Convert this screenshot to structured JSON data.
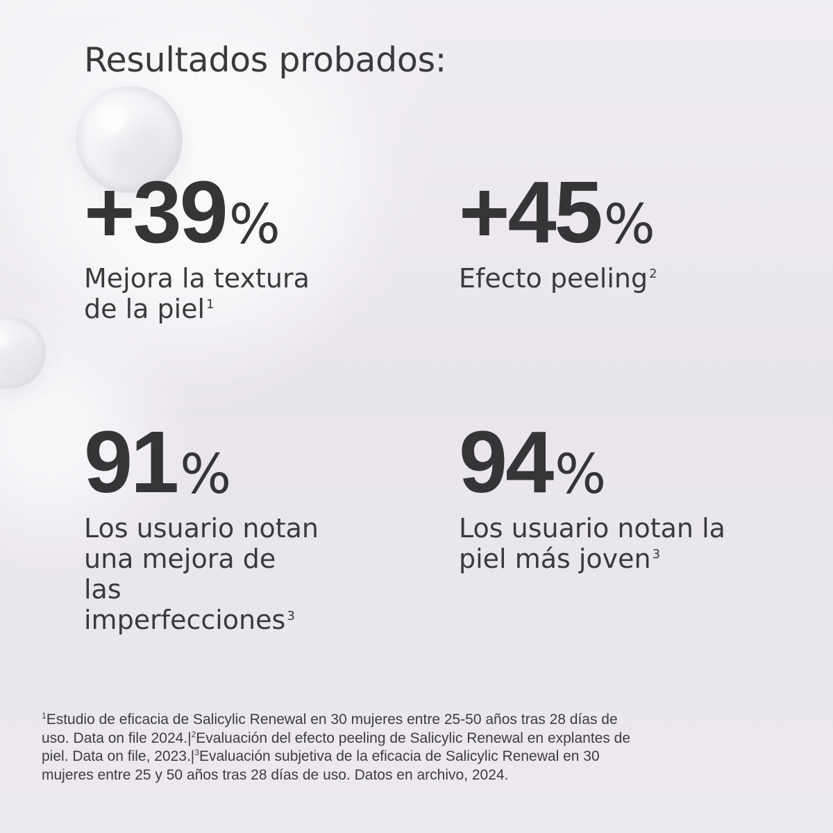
{
  "page": {
    "title": "Resultados probados:"
  },
  "stats": [
    {
      "number": "+39",
      "percent": "%",
      "description": [
        "Mejora la textura",
        "de la piel"
      ],
      "ref": "1"
    },
    {
      "number": "+45",
      "percent": "%",
      "description": [
        "Efecto peeling"
      ],
      "ref": "2"
    },
    {
      "number": "91",
      "percent": "%",
      "description": [
        "Los usuario notan",
        "una  mejora de",
        "las",
        "imperfecciones"
      ],
      "ref": "3"
    },
    {
      "number": "94",
      "percent": "%",
      "description": [
        "Los usuario notan la",
        "piel más joven"
      ],
      "ref": "3"
    }
  ],
  "footnotes": {
    "line1_sup": "1",
    "line1": "Estudio de eficacia de Salicylic Renewal en 30 mujeres entre 25-50 años tras 28 días de",
    "line2_a": "uso. Data on file 2024.|",
    "line2_sup": "2",
    "line2_b": "Evaluación del efecto peeling de Salicylic Renewal en explantes de",
    "line3_a": "piel. Data on file, 2023.|",
    "line3_sup": "3",
    "line3_b": "Evaluación subjetiva de la eficacia de Salicylic Renewal en 30",
    "line4": "mujeres entre 25 y 50 años tras 28 días de uso. Datos en archivo, 2024."
  },
  "colors": {
    "background": "#ebe7ee",
    "text": "#3a393b"
  }
}
